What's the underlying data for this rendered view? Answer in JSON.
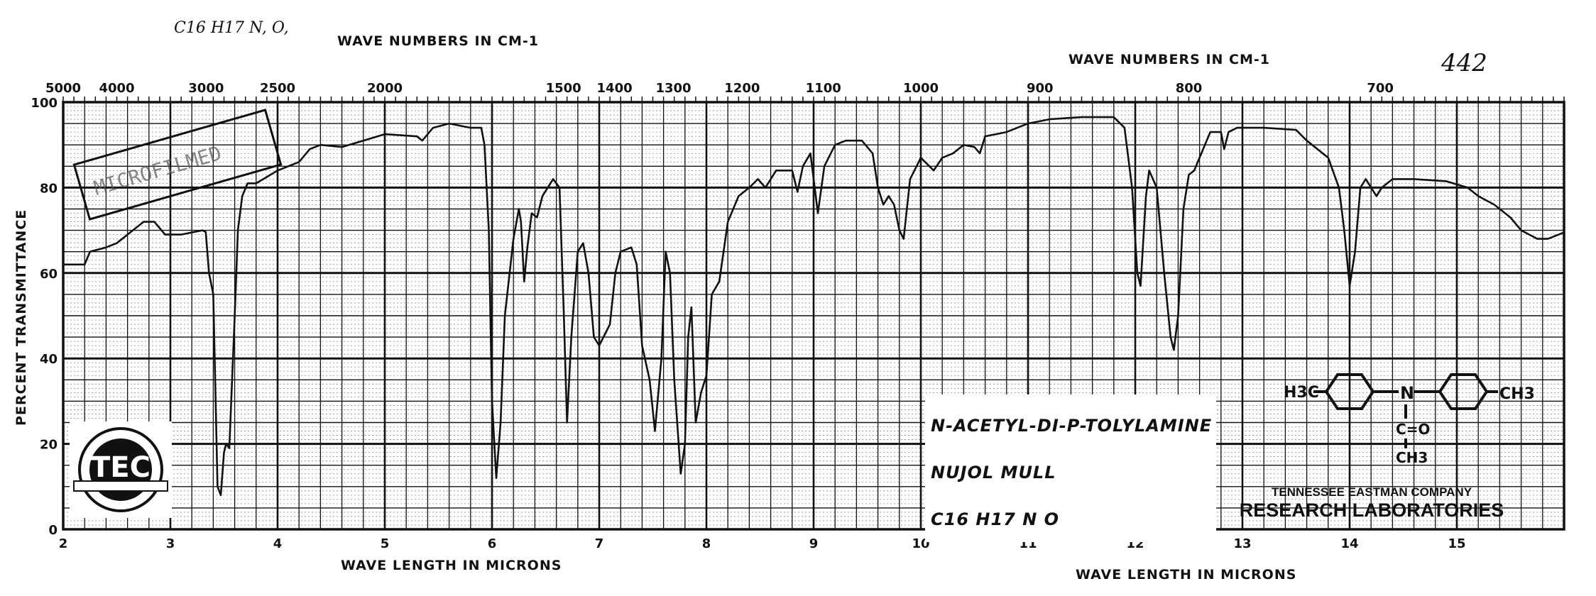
{
  "chart_data": {
    "type": "line",
    "xlabel": "WAVE LENGTH IN MICRONS",
    "ylabel": "PERCENT TRANSMITTANCE",
    "top_axis_label": "WAVE NUMBERS IN CM-1",
    "xlim": [
      2,
      16
    ],
    "ylim": [
      0,
      100
    ],
    "grid": true,
    "x_ticks": [
      2,
      3,
      4,
      5,
      6,
      7,
      8,
      9,
      10,
      11,
      12,
      13,
      14,
      15
    ],
    "y_ticks": [
      0,
      20,
      40,
      60,
      80,
      100
    ],
    "top_ticks": [
      5000,
      4000,
      3000,
      2500,
      2000,
      1500,
      1400,
      1300,
      1200,
      1100,
      1000,
      900,
      800,
      700
    ],
    "series": [
      {
        "x": [
          2.0,
          2.2,
          2.25,
          2.4,
          2.5,
          2.65,
          2.75,
          2.85,
          2.95,
          3.1,
          3.3,
          3.33,
          3.36,
          3.4,
          3.44,
          3.47,
          3.5,
          3.52,
          3.55,
          3.6,
          3.63,
          3.67,
          3.72,
          3.8,
          4.0,
          4.2,
          4.3,
          4.4,
          4.6,
          4.8,
          5.0,
          5.3,
          5.35,
          5.45,
          5.6,
          5.8,
          5.9,
          5.93,
          5.97,
          6.0,
          6.04,
          6.08,
          6.12,
          6.2,
          6.25,
          6.27,
          6.3,
          6.33,
          6.37,
          6.42,
          6.47,
          6.52,
          6.57,
          6.63,
          6.67,
          6.7,
          6.74,
          6.8,
          6.85,
          6.9,
          6.95,
          7.0,
          7.1,
          7.15,
          7.2,
          7.3,
          7.35,
          7.4,
          7.47,
          7.52,
          7.58,
          7.62,
          7.66,
          7.7,
          7.76,
          7.8,
          7.83,
          7.86,
          7.9,
          7.95,
          8.0,
          8.05,
          8.12,
          8.2,
          8.3,
          8.4,
          8.48,
          8.55,
          8.65,
          8.75,
          8.8,
          8.85,
          8.9,
          8.97,
          9.04,
          9.1,
          9.2,
          9.3,
          9.45,
          9.55,
          9.6,
          9.65,
          9.7,
          9.75,
          9.8,
          9.84,
          9.9,
          10.0,
          10.08,
          10.12,
          10.2,
          10.3,
          10.4,
          10.5,
          10.55,
          10.6,
          10.8,
          11.0,
          11.2,
          11.5,
          11.8,
          11.9,
          11.97,
          12.02,
          12.05,
          12.1,
          12.13,
          12.2,
          12.27,
          12.33,
          12.36,
          12.4,
          12.45,
          12.5,
          12.55,
          12.6,
          12.7,
          12.8,
          12.83,
          12.87,
          12.95,
          13.2,
          13.5,
          13.6,
          13.7,
          13.8,
          13.9,
          13.95,
          14.0,
          14.05,
          14.1,
          14.15,
          14.2,
          14.25,
          14.3,
          14.4,
          14.6,
          14.9,
          15.1,
          15.2,
          15.35,
          15.5,
          15.6,
          15.75,
          15.85,
          16.0
        ],
        "y": [
          62,
          62,
          65,
          66,
          67,
          70,
          72,
          72,
          69,
          69,
          70,
          69.6,
          60,
          55,
          10,
          8,
          18,
          20,
          19,
          50,
          70,
          78,
          81,
          81,
          84,
          86,
          89,
          90,
          89.5,
          91,
          92.5,
          92,
          91,
          94,
          95,
          94,
          94,
          90,
          70,
          30,
          12,
          25,
          50,
          68,
          75,
          72,
          58,
          66,
          74,
          73,
          78,
          80,
          82,
          80,
          50,
          25,
          45,
          65,
          67,
          60,
          45,
          43,
          48,
          60,
          65,
          66,
          62,
          43,
          35,
          23,
          40,
          65,
          60,
          35,
          13,
          20,
          45,
          52,
          25,
          32,
          36,
          55,
          58,
          72,
          78,
          80,
          82,
          80,
          84,
          84,
          84,
          79,
          85,
          88,
          74,
          85,
          90,
          91,
          91,
          88,
          80,
          76,
          78,
          76,
          70,
          68,
          82,
          87,
          85,
          84,
          87,
          88,
          90,
          89.5,
          88,
          92,
          93,
          95,
          96,
          96.5,
          96.5,
          94,
          80,
          60,
          57,
          78,
          84,
          80,
          60,
          45,
          42,
          50,
          75,
          83,
          84,
          87,
          93,
          93,
          89,
          93,
          94,
          94,
          93.5,
          91,
          89,
          87,
          80,
          70,
          57,
          65,
          80,
          82,
          80,
          78,
          80,
          82,
          82,
          81.5,
          80,
          78,
          76,
          73,
          70,
          68,
          68,
          69.5
        ]
      }
    ]
  },
  "handwritten": {
    "formula": "C16 H17 N, O,",
    "number": "442"
  },
  "sample": {
    "name": "N-ACETYL-DI-P-TOLYLAMINE",
    "medium": "NUJOL MULL",
    "formula": "C16 H17 N O"
  },
  "structure": {
    "left_group": "H3C",
    "right_group": "CH3",
    "center": "N",
    "carbonyl": "C=O",
    "methyl": "CH3"
  },
  "company": {
    "line1": "TENNESSEE EASTMAN COMPANY",
    "line2": "RESEARCH LABORATORIES"
  },
  "stamp": {
    "text": "MICROFILMED"
  },
  "logo": {
    "text": "TEC"
  },
  "colors": {
    "ink": "#111111",
    "paper": "#ffffff"
  }
}
